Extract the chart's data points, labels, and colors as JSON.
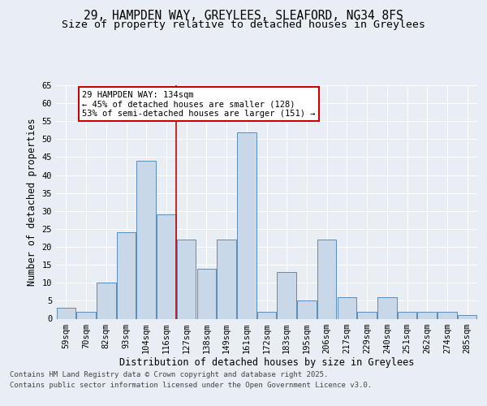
{
  "title_line1": "29, HAMPDEN WAY, GREYLEES, SLEAFORD, NG34 8FS",
  "title_line2": "Size of property relative to detached houses in Greylees",
  "xlabel": "Distribution of detached houses by size in Greylees",
  "ylabel": "Number of detached properties",
  "bins": [
    "59sqm",
    "70sqm",
    "82sqm",
    "93sqm",
    "104sqm",
    "116sqm",
    "127sqm",
    "138sqm",
    "149sqm",
    "161sqm",
    "172sqm",
    "183sqm",
    "195sqm",
    "206sqm",
    "217sqm",
    "229sqm",
    "240sqm",
    "251sqm",
    "262sqm",
    "274sqm",
    "285sqm"
  ],
  "values": [
    3,
    2,
    10,
    24,
    44,
    29,
    22,
    14,
    22,
    52,
    2,
    13,
    5,
    22,
    6,
    2,
    6,
    2,
    2,
    2,
    1
  ],
  "bar_color": "#c8d8e8",
  "bar_edge_color": "#5b8db8",
  "vline_x": 5.5,
  "vline_color": "#cc0000",
  "annotation_text": "29 HAMPDEN WAY: 134sqm\n← 45% of detached houses are smaller (128)\n53% of semi-detached houses are larger (151) →",
  "annotation_box_color": "#ffffff",
  "annotation_box_edge": "#cc0000",
  "ylim": [
    0,
    65
  ],
  "yticks": [
    0,
    5,
    10,
    15,
    20,
    25,
    30,
    35,
    40,
    45,
    50,
    55,
    60,
    65
  ],
  "bg_color": "#e8eef4",
  "plot_bg_color": "#e8eef4",
  "footer_line1": "Contains HM Land Registry data © Crown copyright and database right 2025.",
  "footer_line2": "Contains public sector information licensed under the Open Government Licence v3.0.",
  "title_fontsize": 10.5,
  "subtitle_fontsize": 9.5,
  "axis_label_fontsize": 8.5,
  "tick_fontsize": 7.5,
  "annotation_fontsize": 7.5,
  "footer_fontsize": 6.5
}
